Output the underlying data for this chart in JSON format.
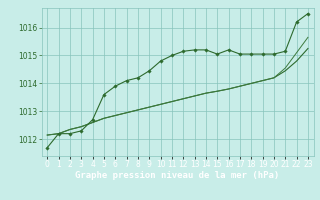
{
  "background_color": "#c8ede8",
  "plot_bg": "#c8ede8",
  "grid_color": "#88c4bc",
  "line_color_dark": "#2d6a2d",
  "line_color_mid": "#3d7a3d",
  "xlabel": "Graphe pression niveau de la mer (hPa)",
  "xlabel_color": "#ffffff",
  "xlabel_bg": "#2d6a2d",
  "tick_color_x": "#ffffff",
  "tick_color_y": "#2d6a2d",
  "ylim": [
    1011.4,
    1016.7
  ],
  "xlim": [
    -0.5,
    23.5
  ],
  "yticks": [
    1012,
    1013,
    1014,
    1015,
    1016
  ],
  "xticks": [
    0,
    1,
    2,
    3,
    4,
    5,
    6,
    7,
    8,
    9,
    10,
    11,
    12,
    13,
    14,
    15,
    16,
    17,
    18,
    19,
    20,
    21,
    22,
    23
  ],
  "series1": [
    1011.7,
    1012.2,
    1012.2,
    1012.3,
    1012.7,
    1013.6,
    1013.9,
    1014.1,
    1014.2,
    1014.45,
    1014.8,
    1015.0,
    1015.15,
    1015.2,
    1015.2,
    1015.05,
    1015.2,
    1015.05,
    1015.05,
    1015.05,
    1015.05,
    1015.15,
    1016.2,
    1016.5
  ],
  "series2": [
    1012.15,
    1012.2,
    1012.35,
    1012.45,
    1012.6,
    1012.75,
    1012.85,
    1012.95,
    1013.05,
    1013.15,
    1013.25,
    1013.35,
    1013.45,
    1013.55,
    1013.65,
    1013.72,
    1013.8,
    1013.9,
    1014.0,
    1014.1,
    1014.2,
    1014.45,
    1014.8,
    1015.25
  ],
  "series3": [
    1012.15,
    1012.2,
    1012.35,
    1012.45,
    1012.6,
    1012.75,
    1012.85,
    1012.95,
    1013.05,
    1013.15,
    1013.25,
    1013.35,
    1013.45,
    1013.55,
    1013.65,
    1013.72,
    1013.8,
    1013.9,
    1014.0,
    1014.1,
    1014.2,
    1014.55,
    1015.1,
    1015.65
  ],
  "tick_fontsize": 5.5,
  "xlabel_fontsize": 6.5
}
